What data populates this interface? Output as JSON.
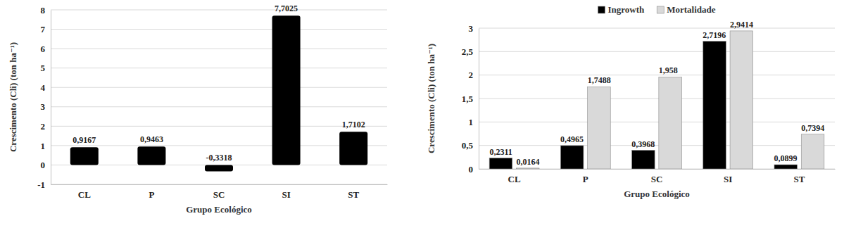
{
  "chart_data": [
    {
      "type": "bar",
      "y_label": "Crescimento (Cli) (ton ha⁻¹)",
      "x_label": "Grupo Ecológico",
      "categories": [
        "CL",
        "P",
        "SC",
        "SI",
        "ST"
      ],
      "values": [
        0.9167,
        0.9463,
        -0.3318,
        7.7025,
        1.7102
      ],
      "value_labels": [
        "0,9167",
        "0,9463",
        "-0,3318",
        "7,7025",
        "1,7102"
      ],
      "color": "#000000",
      "ylim": [
        -1,
        8
      ],
      "yticks": [
        -1,
        0,
        1,
        2,
        3,
        4,
        5,
        6,
        7,
        8
      ],
      "grid": true,
      "data_labels": true
    },
    {
      "type": "bar",
      "y_label": "Crescimento (Cli) (ton ha⁻¹)",
      "x_label": "Grupo Ecológico",
      "categories": [
        "CL",
        "P",
        "SC",
        "SI",
        "ST"
      ],
      "series": [
        {
          "name": "Ingrowth",
          "color": "#000000",
          "values": [
            0.2311,
            0.4965,
            0.3968,
            2.7196,
            0.0899
          ],
          "value_labels": [
            "0,2311",
            "0,4965",
            "0,3968",
            "2,7196",
            "0,0899"
          ]
        },
        {
          "name": "Mortalidade",
          "color": "#d9d9d9",
          "values": [
            0.0164,
            1.7488,
            1.958,
            2.9414,
            0.7394
          ],
          "value_labels": [
            "0,0164",
            "1,7488",
            "1,958",
            "2,9414",
            "0,7394"
          ]
        }
      ],
      "ylim": [
        0,
        3
      ],
      "yticks": [
        0,
        {
          "value": 0.5,
          "label": "0,5"
        },
        1,
        {
          "value": 1.5,
          "label": "1,5"
        },
        2,
        {
          "value": 2.5,
          "label": "2,5"
        },
        3
      ],
      "grid": true,
      "legend": "top",
      "data_labels": true
    }
  ]
}
